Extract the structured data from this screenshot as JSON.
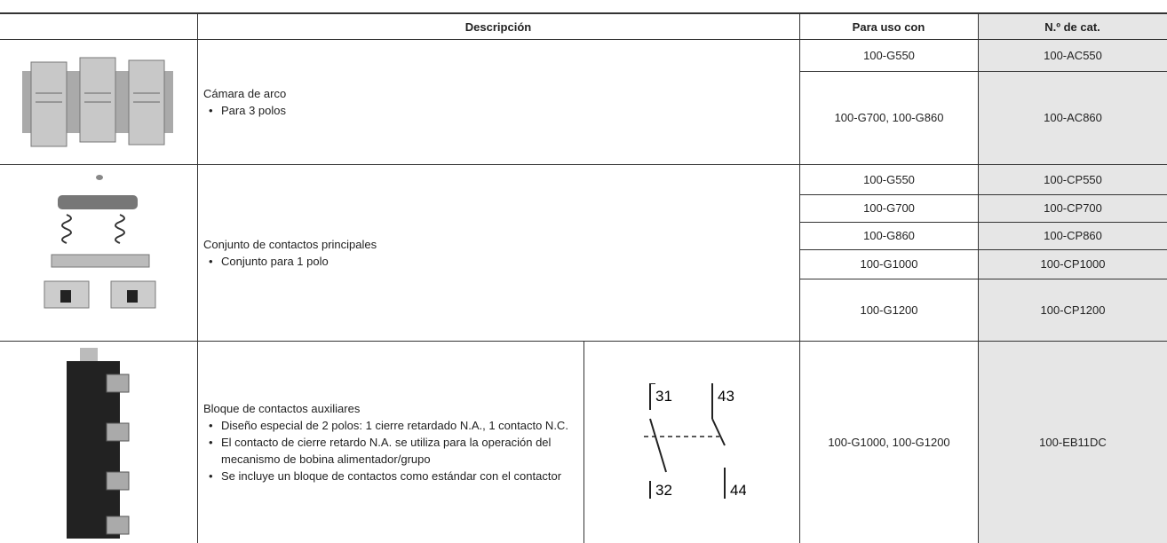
{
  "table": {
    "headers": {
      "description": "Descripción",
      "for_use_with": "Para uso con",
      "cat_no": "N.º de cat."
    },
    "rows": [
      {
        "description": {
          "title": "Cámara de arco",
          "bullets": [
            "Para 3 polos"
          ]
        },
        "items": [
          {
            "for_use_with": "100-G550",
            "cat_no": "100-AC550"
          },
          {
            "for_use_with": "100-G700, 100-G860",
            "cat_no": "100-AC860"
          }
        ]
      },
      {
        "description": {
          "title": "Conjunto de contactos principales",
          "bullets": [
            "Conjunto para 1 polo"
          ]
        },
        "items": [
          {
            "for_use_with": "100-G550",
            "cat_no": "100-CP550"
          },
          {
            "for_use_with": "100-G700",
            "cat_no": "100-CP700"
          },
          {
            "for_use_with": "100-G860",
            "cat_no": "100-CP860"
          },
          {
            "for_use_with": "100-G1000",
            "cat_no": "100-CP1000"
          },
          {
            "for_use_with": "100-G1200",
            "cat_no": "100-CP1200"
          }
        ]
      },
      {
        "description": {
          "title": "Bloque de contactos auxiliares",
          "bullets": [
            "Diseño especial de 2 polos: 1 cierre retardado N.A., 1 contacto N.C.",
            "El contacto de cierre retardo N.A. se utiliza para la operación del mecanismo de bobina alimentador/grupo",
            "Se incluye un bloque de contactos como estándar con el contactor"
          ]
        },
        "diagram_labels": [
          "31",
          "43",
          "32",
          "44"
        ],
        "items": [
          {
            "for_use_with": "100-G1000, 100-G1200",
            "cat_no": "100-EB11DC"
          }
        ]
      }
    ]
  }
}
